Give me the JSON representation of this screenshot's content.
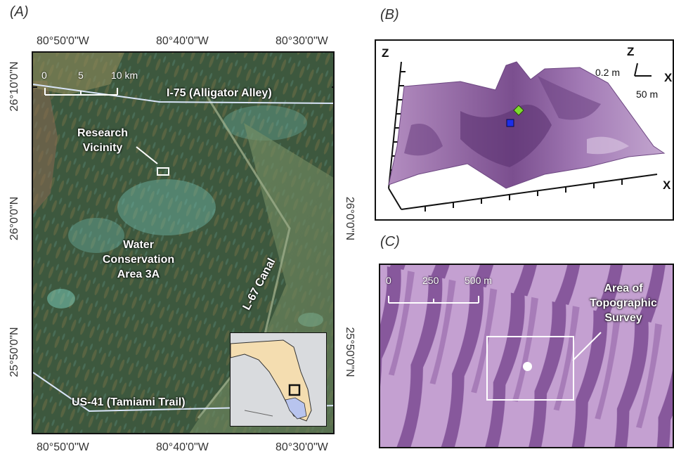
{
  "panelA": {
    "label": "(A)",
    "top_coords": [
      "80°50'0\"W",
      "80°40'0\"W",
      "80°30'0\"W"
    ],
    "bottom_coords": [
      "80°50'0\"W",
      "80°40'0\"W",
      "80°30'0\"W"
    ],
    "left_coords": [
      "26°10'0\"N",
      "26°0'0\"N",
      "25°50'0\"N"
    ],
    "right_coords": [
      "26°0'0\"N",
      "25°50'0\"N"
    ],
    "scale": {
      "labels": [
        "0",
        "5",
        "10 km"
      ]
    },
    "highway_i75": "I-75 (Alligator Alley)",
    "highway_us41": "US-41 (Tamiami Trail)",
    "canal": "L-67 Canal",
    "research_line1": "Research",
    "research_line2": "Vicinity",
    "area_line1": "Water",
    "area_line2": "Conservation",
    "area_line3": "Area 3A"
  },
  "panelB": {
    "label": "(B)",
    "z_axis": "Z",
    "x_axis": "X",
    "legend_z": "Z",
    "legend_x": "X",
    "legend_vertical": "0.2 m",
    "legend_horizontal": "50 m"
  },
  "panelC": {
    "label": "(C)",
    "scale": {
      "labels": [
        "0",
        "250",
        "500 m"
      ]
    },
    "survey_line1": "Area of",
    "survey_line2": "Topographic",
    "survey_line3": "Survey"
  },
  "colors": {
    "swamp_green": "#3b5a3a",
    "canal_green": "#6e8860",
    "water_cyan": "#6fb7a8",
    "surface_purple": "#9b6ca8",
    "marker_green": "#7ddc2e",
    "marker_blue": "#1d2ee8",
    "florida_land": "#f4ddb0",
    "florida_water": "#b8c4ee"
  }
}
